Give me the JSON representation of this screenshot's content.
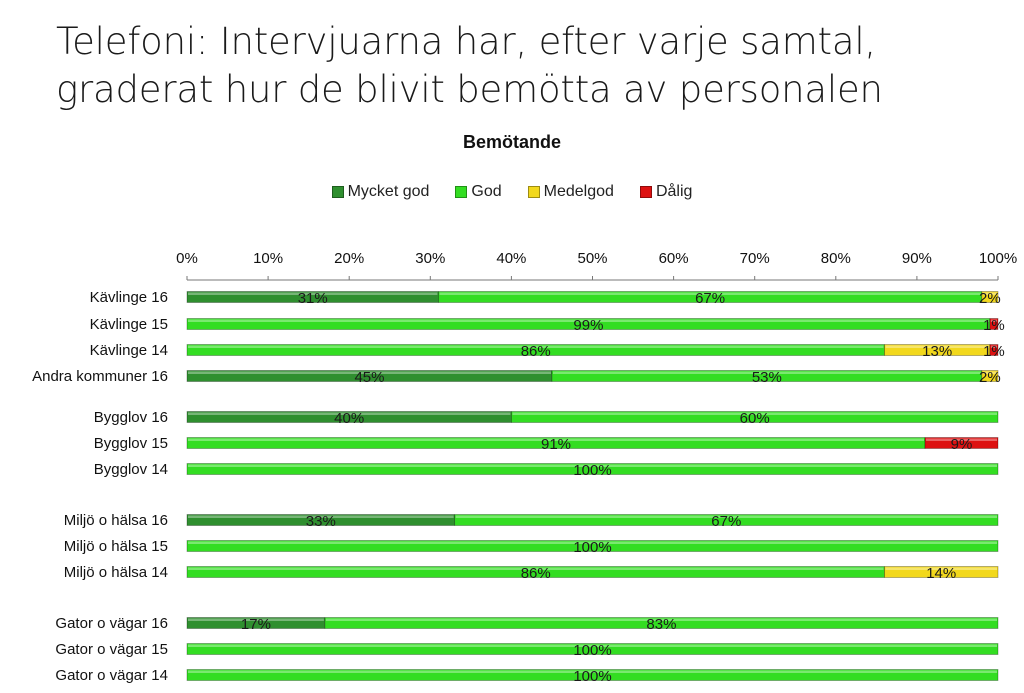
{
  "slide": {
    "title": "Telefoni: Intervjuarna har, efter varje samtal,\ngraderat hur de blivit bemötta av personalen"
  },
  "chart_data": {
    "type": "bar",
    "orientation": "horizontal",
    "stacked": "percent",
    "title": "Bemötande",
    "legend_position": "top",
    "xlim": [
      0,
      100
    ],
    "x_ticks": [
      "0%",
      "10%",
      "20%",
      "30%",
      "40%",
      "50%",
      "60%",
      "70%",
      "80%",
      "90%",
      "100%"
    ],
    "categories": [
      "Kävlinge 16",
      "Kävlinge 15",
      "Kävlinge 14",
      "Andra kommuner 16",
      "Bygglov 16",
      "Bygglov 15",
      "Bygglov 14",
      "Miljö o hälsa 16",
      "Miljö o hälsa 15",
      "Miljö o hälsa 14",
      "Gator o vägar 16",
      "Gator o vägar 15",
      "Gator o vägar 14"
    ],
    "series": [
      {
        "name": "Mycket god",
        "color": "#2f8f2f",
        "values": [
          31,
          0,
          0,
          45,
          40,
          0,
          0,
          33,
          0,
          0,
          17,
          0,
          0
        ]
      },
      {
        "name": "God",
        "color": "#33dd22",
        "values": [
          67,
          99,
          86,
          53,
          60,
          91,
          100,
          67,
          100,
          86,
          83,
          100,
          100
        ]
      },
      {
        "name": "Medelgod",
        "color": "#f2d81c",
        "values": [
          2,
          0,
          13,
          2,
          0,
          0,
          0,
          0,
          0,
          14,
          0,
          0,
          0
        ]
      },
      {
        "name": "Dålig",
        "color": "#dd1111",
        "values": [
          0,
          1,
          1,
          0,
          0,
          9,
          0,
          0,
          0,
          0,
          0,
          0,
          0
        ]
      }
    ]
  }
}
